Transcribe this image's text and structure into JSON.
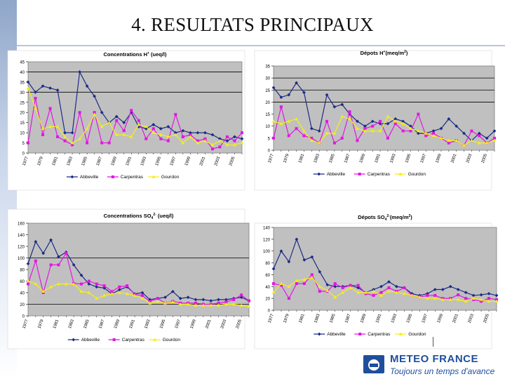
{
  "page": {
    "title": "4. RESULTATS PRINCIPAUX"
  },
  "brand": {
    "name": "METEO FRANCE",
    "slogan": "Toujours un temps d'avance"
  },
  "colors": {
    "Abbeville": "#1c2a86",
    "Carpentras": "#e316e3",
    "Gourdon": "#f5ef12",
    "plot_bg": "#c0c0c0",
    "frame": "#ffffff",
    "line": "#000000"
  },
  "chart_data": [
    {
      "id": "c1",
      "type": "line",
      "title_main": "Concentrations  H",
      "title_sup": "+",
      "title_rest": " (ueq/l)",
      "ylim": [
        0,
        45
      ],
      "yticks": [
        0,
        5,
        10,
        15,
        20,
        25,
        30,
        35,
        40,
        45
      ],
      "ref_lines": [
        30,
        40
      ],
      "x": [
        1977,
        1978,
        1979,
        1980,
        1981,
        1982,
        1983,
        1984,
        1985,
        1986,
        1987,
        1988,
        1989,
        1990,
        1991,
        1992,
        1993,
        1994,
        1995,
        1996,
        1997,
        1998,
        1999,
        2000,
        2001,
        2002,
        2003,
        2004,
        2005,
        2006
      ],
      "xtick_labels": [
        "1977",
        "1979",
        "1981",
        "1983",
        "1985",
        "1987",
        "1989",
        "1991",
        "1993",
        "1995",
        "1997",
        "1999",
        "2001",
        "2003",
        "2005"
      ],
      "series": [
        {
          "name": "Abbeville",
          "values": [
            35,
            30,
            33,
            32,
            31,
            10,
            10,
            40,
            33,
            28,
            20,
            15,
            18,
            15,
            20,
            13,
            12,
            14,
            12,
            13,
            10,
            11,
            10,
            10,
            10,
            9,
            7,
            6,
            8,
            7
          ]
        },
        {
          "name": "Carpentras",
          "values": [
            5,
            27,
            9,
            22,
            8,
            6,
            4,
            20,
            5,
            20,
            5,
            5,
            16,
            11,
            21,
            16,
            7,
            12,
            7,
            6,
            19,
            8,
            9,
            6,
            7,
            2,
            3,
            8,
            6,
            10
          ]
        },
        {
          "name": "Gourdon",
          "values": [
            32,
            22,
            12,
            13,
            13,
            8,
            5,
            7,
            12,
            19,
            13,
            15,
            9,
            9,
            8,
            14,
            13,
            10,
            9,
            8,
            9,
            5,
            8,
            5,
            6,
            4,
            6,
            4,
            4,
            5
          ]
        }
      ]
    },
    {
      "id": "c2",
      "type": "line",
      "title_main": "Dépots H",
      "title_sup": "+",
      "title_rest": "(meq/m",
      "title_sup2": "2",
      "title_end": ")",
      "ylim": [
        0,
        35
      ],
      "yticks": [
        0,
        5,
        10,
        15,
        20,
        25,
        30,
        35
      ],
      "ref_lines": [
        20,
        25,
        30
      ],
      "x": [
        1977,
        1978,
        1979,
        1980,
        1981,
        1982,
        1983,
        1984,
        1985,
        1986,
        1987,
        1988,
        1989,
        1990,
        1991,
        1992,
        1993,
        1994,
        1995,
        1996,
        1997,
        1998,
        1999,
        2000,
        2001,
        2002,
        2003,
        2004,
        2005,
        2006
      ],
      "xtick_labels": [
        "1977",
        "1979",
        "1981",
        "1983",
        "1985",
        "1987",
        "1989",
        "1991",
        "1993",
        "1995",
        "1997",
        "1999",
        "2001",
        "2003",
        "2005"
      ],
      "series": [
        {
          "name": "Abbeville",
          "values": [
            26,
            22,
            23,
            28,
            24,
            9,
            8,
            23,
            18,
            19,
            15,
            12,
            10,
            12,
            11,
            11,
            13,
            12,
            10,
            7,
            7,
            8,
            9,
            13,
            10,
            7,
            4,
            7,
            5,
            8
          ]
        },
        {
          "name": "Carpentras",
          "values": [
            5,
            18,
            6,
            9,
            6,
            5,
            3,
            12,
            3,
            5,
            16,
            4,
            9,
            10,
            12,
            5,
            11,
            8,
            8,
            15,
            6,
            7,
            5,
            3,
            4,
            2,
            8,
            6,
            3,
            5
          ]
        },
        {
          "name": "Gourdon",
          "values": [
            12,
            11,
            12,
            13,
            8,
            4,
            3,
            7,
            7,
            14,
            13,
            9,
            8,
            8,
            8,
            14,
            12,
            11,
            9,
            8,
            7,
            6,
            5,
            4,
            4,
            2,
            4,
            3,
            3,
            4
          ]
        }
      ]
    },
    {
      "id": "c3",
      "type": "line",
      "title_main": "Concentrations SO",
      "title_sub": "4",
      "title_sup": "2-",
      "title_rest": " (ueq/l)",
      "ylim": [
        0,
        160
      ],
      "yticks": [
        0,
        20,
        40,
        60,
        80,
        100,
        120,
        140,
        160
      ],
      "ref_lines": [
        100,
        20
      ],
      "x": [
        1977,
        1978,
        1979,
        1980,
        1981,
        1982,
        1983,
        1984,
        1985,
        1986,
        1987,
        1988,
        1989,
        1990,
        1991,
        1992,
        1993,
        1994,
        1995,
        1996,
        1997,
        1998,
        1999,
        2000,
        2001,
        2002,
        2003,
        2004,
        2005,
        2006
      ],
      "xtick_labels": [
        "1977",
        "1979",
        "1981",
        "1983",
        "1985",
        "1987",
        "1989",
        "1991",
        "1993",
        "1995",
        "1997",
        "1999",
        "2001",
        "2003",
        "2005"
      ],
      "series": [
        {
          "name": "Abbeville",
          "values": [
            90,
            128,
            108,
            131,
            102,
            110,
            88,
            70,
            55,
            50,
            48,
            38,
            45,
            50,
            38,
            40,
            28,
            30,
            32,
            42,
            30,
            32,
            28,
            28,
            26,
            28,
            28,
            30,
            32,
            26
          ]
        },
        {
          "name": "Carpentras",
          "values": [
            55,
            95,
            40,
            88,
            88,
            108,
            56,
            55,
            60,
            55,
            52,
            42,
            50,
            52,
            37,
            35,
            25,
            30,
            22,
            25,
            22,
            22,
            22,
            20,
            20,
            22,
            24,
            28,
            36,
            26
          ]
        },
        {
          "name": "Gourdon",
          "values": [
            60,
            55,
            42,
            50,
            55,
            55,
            55,
            42,
            40,
            30,
            35,
            38,
            40,
            38,
            35,
            30,
            22,
            25,
            22,
            24,
            20,
            20,
            18,
            18,
            18,
            18,
            20,
            20,
            18,
            16
          ]
        }
      ]
    },
    {
      "id": "c4",
      "type": "line",
      "title_main": "Dépots SO",
      "title_sub": "4",
      "title_sup": "2-",
      "title_rest": "(meq/m",
      "title_sup2": "2",
      "title_end": ")",
      "ylim": [
        0,
        140
      ],
      "yticks": [
        0,
        20,
        40,
        60,
        80,
        100,
        120,
        140
      ],
      "ref_lines": [],
      "x": [
        1977,
        1978,
        1979,
        1980,
        1981,
        1982,
        1983,
        1984,
        1985,
        1986,
        1987,
        1988,
        1989,
        1990,
        1991,
        1992,
        1993,
        1994,
        1995,
        1996,
        1997,
        1998,
        1999,
        2000,
        2001,
        2002,
        2003,
        2004,
        2005,
        2006
      ],
      "xtick_labels": [
        "1977",
        "1979",
        "1981",
        "1983",
        "1985",
        "1987",
        "1989",
        "1991",
        "1993",
        "1995",
        "1997",
        "1999",
        "2001",
        "2003",
        "2005"
      ],
      "series": [
        {
          "name": "Abbeville",
          "values": [
            70,
            100,
            82,
            120,
            85,
            90,
            65,
            43,
            40,
            40,
            42,
            38,
            30,
            35,
            40,
            48,
            40,
            38,
            28,
            25,
            28,
            35,
            35,
            40,
            35,
            30,
            25,
            26,
            28,
            25
          ]
        },
        {
          "name": "Carpentras",
          "values": [
            45,
            42,
            20,
            45,
            45,
            60,
            32,
            32,
            45,
            38,
            42,
            42,
            28,
            25,
            30,
            38,
            32,
            38,
            25,
            22,
            25,
            25,
            20,
            20,
            26,
            20,
            18,
            15,
            20,
            18
          ]
        },
        {
          "name": "Gourdon",
          "values": [
            30,
            45,
            40,
            50,
            52,
            55,
            40,
            33,
            22,
            30,
            38,
            30,
            30,
            32,
            25,
            32,
            30,
            28,
            25,
            22,
            20,
            20,
            18,
            18,
            18,
            15,
            20,
            18,
            15,
            15
          ]
        }
      ]
    }
  ]
}
